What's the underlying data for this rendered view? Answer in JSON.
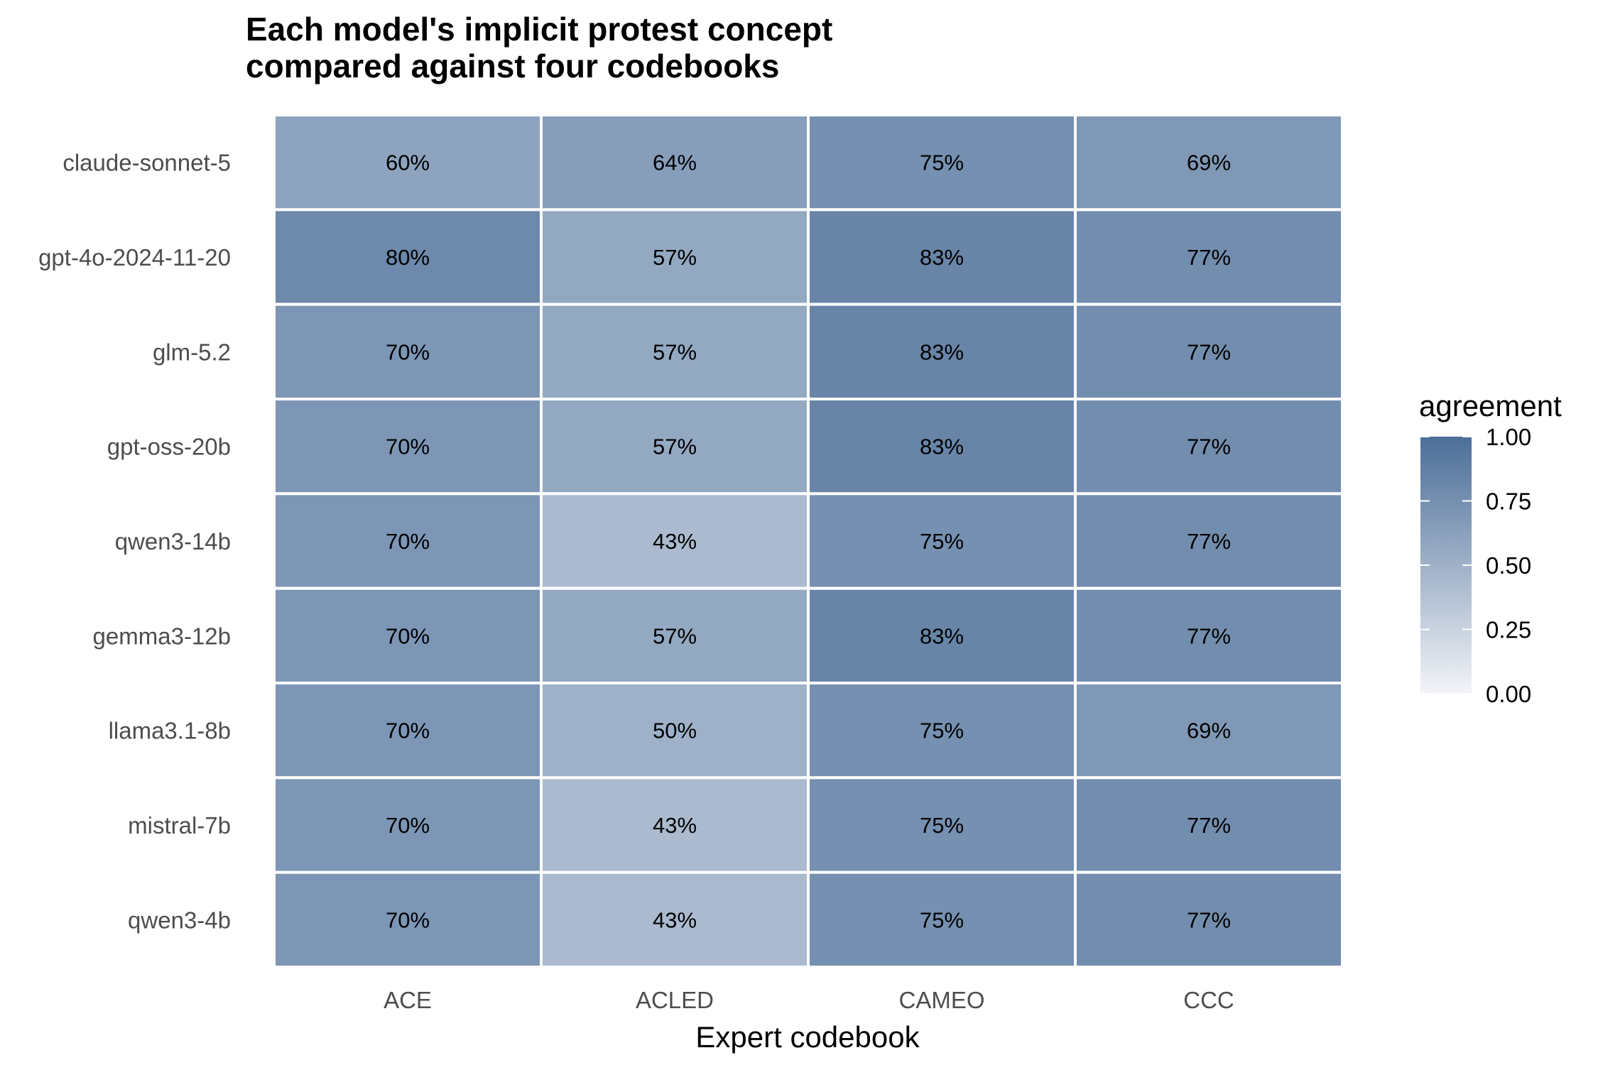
{
  "chart_data": {
    "type": "heatmap",
    "title": "Each model's implicit protest concept compared against four codebooks",
    "title_lines": [
      "Each model's implicit protest concept",
      "compared against four codebooks"
    ],
    "xlabel": "Expert codebook",
    "ylabel": "",
    "x_categories": [
      "ACE",
      "ACLED",
      "CAMEO",
      "CCC"
    ],
    "y_categories": [
      "claude-sonnet-5",
      "gpt-4o-2024-11-20",
      "glm-5.2",
      "gpt-oss-20b",
      "qwen3-14b",
      "gemma3-12b",
      "llama3.1-8b",
      "mistral-7b",
      "qwen3-4b"
    ],
    "values": [
      [
        0.6,
        0.64,
        0.75,
        0.69
      ],
      [
        0.8,
        0.57,
        0.83,
        0.77
      ],
      [
        0.7,
        0.57,
        0.83,
        0.77
      ],
      [
        0.7,
        0.57,
        0.83,
        0.77
      ],
      [
        0.7,
        0.43,
        0.75,
        0.77
      ],
      [
        0.7,
        0.57,
        0.83,
        0.77
      ],
      [
        0.7,
        0.5,
        0.75,
        0.69
      ],
      [
        0.7,
        0.43,
        0.75,
        0.77
      ],
      [
        0.7,
        0.43,
        0.75,
        0.77
      ]
    ],
    "labels": [
      [
        "60%",
        "64%",
        "75%",
        "69%"
      ],
      [
        "80%",
        "57%",
        "83%",
        "77%"
      ],
      [
        "70%",
        "57%",
        "83%",
        "77%"
      ],
      [
        "70%",
        "57%",
        "83%",
        "77%"
      ],
      [
        "70%",
        "43%",
        "75%",
        "77%"
      ],
      [
        "70%",
        "57%",
        "83%",
        "77%"
      ],
      [
        "70%",
        "50%",
        "75%",
        "69%"
      ],
      [
        "70%",
        "43%",
        "75%",
        "77%"
      ],
      [
        "70%",
        "43%",
        "75%",
        "77%"
      ]
    ],
    "legend": {
      "title": "agreement",
      "placement": "right",
      "limits": [
        0,
        1
      ],
      "ticks": [
        0,
        0.25,
        0.5,
        0.75,
        1
      ],
      "tick_labels": [
        "0.00",
        "0.25",
        "0.50",
        "0.75",
        "1.00"
      ]
    },
    "colors": {
      "low": "#f3f4f8",
      "high": "#4b6e98",
      "cell_border": "#ffffff"
    },
    "grid": false
  }
}
